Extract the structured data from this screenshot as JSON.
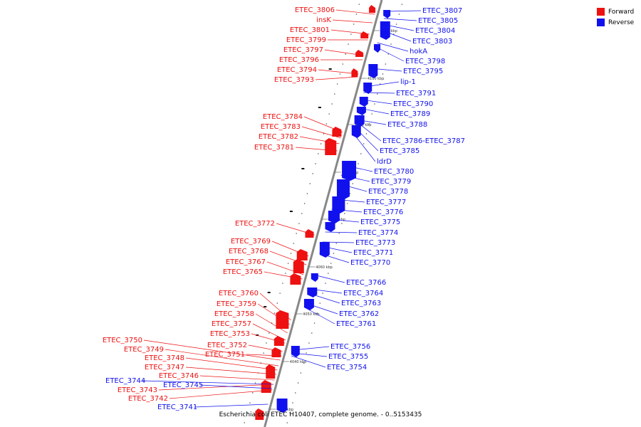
{
  "legend": {
    "forward": {
      "label": "Forward",
      "color": "#ee1111"
    },
    "reverse": {
      "label": "Reverse",
      "color": "#1111ee"
    }
  },
  "caption": "Escherichia coli ETEC H10407, complete genome. - 0..5153435",
  "ticks": [
    "4110 kbp",
    "4100 kbp",
    "4090 kbp",
    "4080 kbp",
    "4070 kbp",
    "4060 kbp",
    "4050 kbp",
    "4040 kbp",
    "4030 kbp"
  ],
  "forward_labels": [
    "ETEC_3806",
    "insK",
    "ETEC_3801",
    "ETEC_3799",
    "ETEC_3797",
    "ETEC_3796",
    "ETEC_3794",
    "ETEC_3793",
    "ETEC_3784",
    "ETEC_3783",
    "ETEC_3782",
    "ETEC_3781",
    "ETEC_3772",
    "ETEC_3769",
    "ETEC_3768",
    "ETEC_3767",
    "ETEC_3765",
    "ETEC_3760",
    "ETEC_3759",
    "ETEC_3758",
    "ETEC_3757",
    "ETEC_3753",
    "ETEC_3752",
    "ETEC_3751",
    "ETEC_3750",
    "ETEC_3749",
    "ETEC_3748",
    "ETEC_3747",
    "ETEC_3746",
    "ETEC_3743",
    "ETEC_3742"
  ],
  "reverse_labels": [
    "ETEC_3807",
    "ETEC_3805",
    "ETEC_3804",
    "ETEC_3803",
    "hokA",
    "ETEC_3798",
    "ETEC_3795",
    "lip-1",
    "ETEC_3791",
    "ETEC_3790",
    "ETEC_3789",
    "ETEC_3788",
    "ETEC_3786-ETEC_3787",
    "ETEC_3785",
    "ldrD",
    "ETEC_3780",
    "ETEC_3779",
    "ETEC_3778",
    "ETEC_3777",
    "ETEC_3776",
    "ETEC_3775",
    "ETEC_3774",
    "ETEC_3773",
    "ETEC_3771",
    "ETEC_3770",
    "ETEC_3766",
    "ETEC_3764",
    "ETEC_3763",
    "ETEC_3762",
    "ETEC_3761",
    "ETEC_3756",
    "ETEC_3755",
    "ETEC_3754",
    "ETEC_3744",
    "ETEC_3745",
    "ETEC_3741"
  ]
}
